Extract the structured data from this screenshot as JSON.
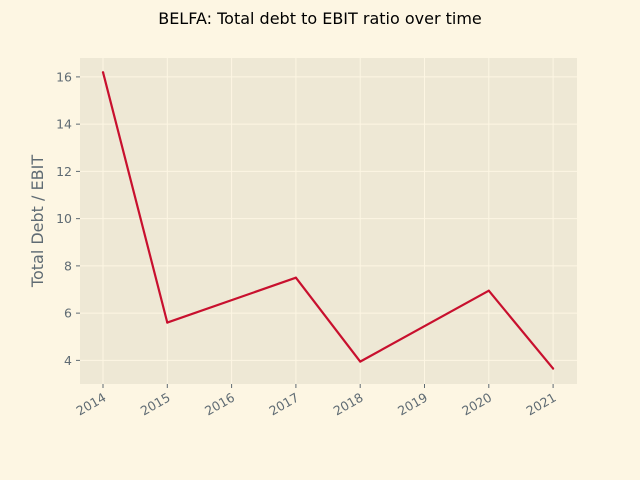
{
  "chart_data": {
    "type": "line",
    "title": "BELFA: Total debt to EBIT ratio over time",
    "xlabel": "",
    "ylabel": "Total Debt / EBIT",
    "x": [
      "2014",
      "2015",
      "2016",
      "2017",
      "2018",
      "2019",
      "2020",
      "2021"
    ],
    "series": [
      {
        "name": "",
        "values": [
          16.2,
          5.6,
          null,
          7.5,
          3.95,
          null,
          6.95,
          3.65
        ]
      }
    ],
    "series_points": [
      {
        "x": "2014",
        "y": 16.2
      },
      {
        "x": "2015",
        "y": 5.6
      },
      {
        "x": "2017",
        "y": 7.5
      },
      {
        "x": "2018",
        "y": 3.95
      },
      {
        "x": "2020",
        "y": 6.95
      },
      {
        "x": "2021",
        "y": 3.65
      }
    ],
    "xlim": [
      "2013-08",
      "2021-03"
    ],
    "ylim": [
      3.0,
      16.8
    ],
    "yticks": [
      4,
      6,
      8,
      10,
      12,
      14,
      16
    ],
    "grid": true,
    "legend": "none",
    "colors": {
      "line": "#c8102e",
      "plot_background": "#eee8d5",
      "figure_background": "#fdf6e3",
      "grid": "#fdf6e3",
      "axis_text": "#5f6b73"
    }
  }
}
